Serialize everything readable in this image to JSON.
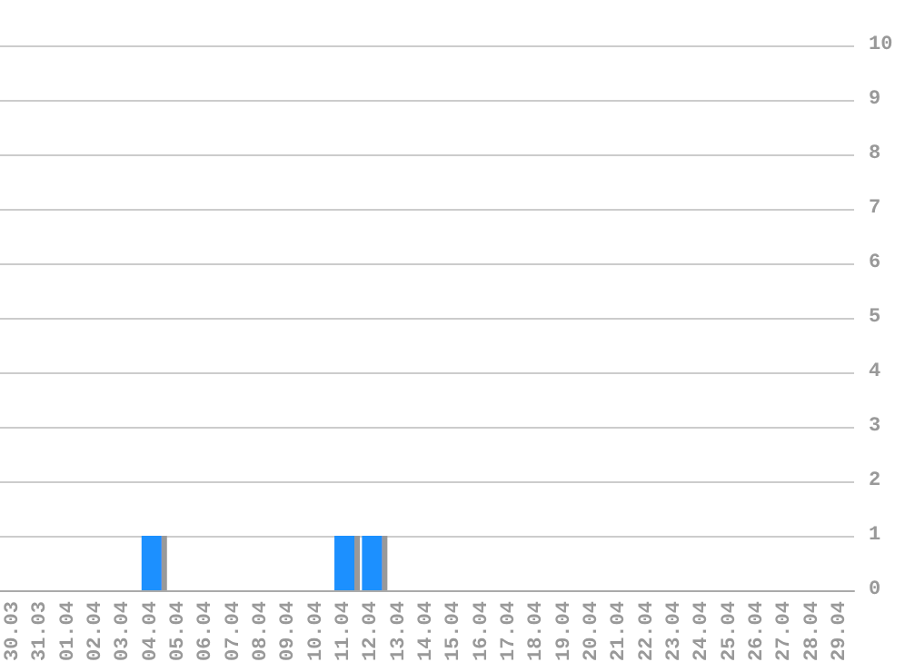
{
  "chart_data": {
    "type": "bar",
    "categories": [
      "30.03",
      "31.03",
      "01.04",
      "02.04",
      "03.04",
      "04.04",
      "05.04",
      "06.04",
      "07.04",
      "08.04",
      "09.04",
      "10.04",
      "11.04",
      "12.04",
      "13.04",
      "14.04",
      "15.04",
      "16.04",
      "17.04",
      "18.04",
      "19.04",
      "20.04",
      "21.04",
      "22.04",
      "23.04",
      "24.04",
      "25.04",
      "26.04",
      "27.04",
      "28.04",
      "29.04"
    ],
    "values": [
      0,
      0,
      0,
      0,
      0,
      1,
      0,
      0,
      0,
      0,
      0,
      0,
      1,
      1,
      0,
      0,
      0,
      0,
      0,
      0,
      0,
      0,
      0,
      0,
      0,
      0,
      0,
      0,
      0,
      0,
      0
    ],
    "color": "#1e90ff",
    "ylim": [
      0,
      10
    ],
    "yticks": [
      0,
      1,
      2,
      3,
      4,
      5,
      6,
      7,
      8,
      9,
      10
    ],
    "grid": "y"
  }
}
